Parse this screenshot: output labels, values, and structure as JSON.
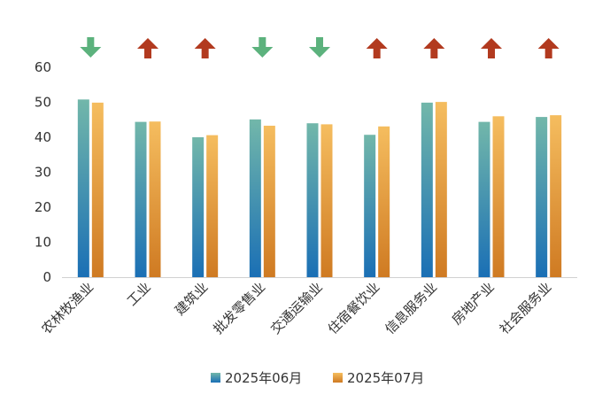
{
  "chart_data": {
    "type": "bar",
    "categories": [
      "农林牧渔业",
      "工业",
      "建筑业",
      "批发零售业",
      "交通运输业",
      "住宿餐饮业",
      "信息服务业",
      "房地产业",
      "社会服务业"
    ],
    "series": [
      {
        "name": "2025年06月",
        "values": [
          50.8,
          44.4,
          40.0,
          45.1,
          44.0,
          40.7,
          49.9,
          44.4,
          45.8
        ]
      },
      {
        "name": "2025年07月",
        "values": [
          49.9,
          44.5,
          40.6,
          43.3,
          43.7,
          43.1,
          50.1,
          46.0,
          46.3
        ]
      }
    ],
    "trend_arrows": [
      "down",
      "up",
      "up",
      "down",
      "down",
      "up",
      "up",
      "up",
      "up"
    ],
    "yticks": [
      0,
      10,
      20,
      30,
      40,
      50,
      60
    ],
    "ylim": [
      0,
      60
    ],
    "grid": false,
    "legend_position": "bottom",
    "colors": {
      "series1_top": "#72b7aa",
      "series1_bottom": "#1a6fb5",
      "series2_top": "#f5bd5f",
      "series2_bottom": "#cf7a22",
      "arrow_up": "#b23a1f",
      "arrow_down": "#5cb27d",
      "axis": "#d0d0d0",
      "text": "#333333"
    }
  }
}
